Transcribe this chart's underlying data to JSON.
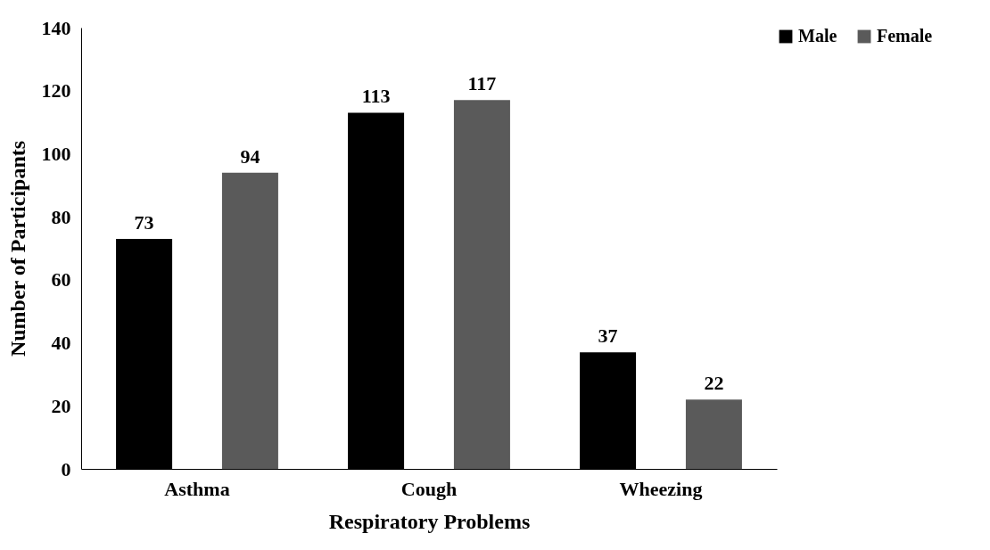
{
  "chart_data": {
    "type": "bar",
    "xlabel": "Respiratory Problems",
    "ylabel": "Number of Participants",
    "categories": [
      "Asthma",
      "Cough",
      "Wheezing"
    ],
    "series": [
      {
        "name": "Male",
        "color": "#000000",
        "values": [
          73,
          113,
          37
        ]
      },
      {
        "name": "Female",
        "color": "#5a5a5a",
        "values": [
          94,
          117,
          22
        ]
      }
    ],
    "ylim": [
      0,
      140
    ],
    "yticks": [
      0,
      20,
      40,
      60,
      80,
      100,
      120,
      140
    ],
    "grid": false,
    "legend": "top right",
    "data_labels": true
  }
}
